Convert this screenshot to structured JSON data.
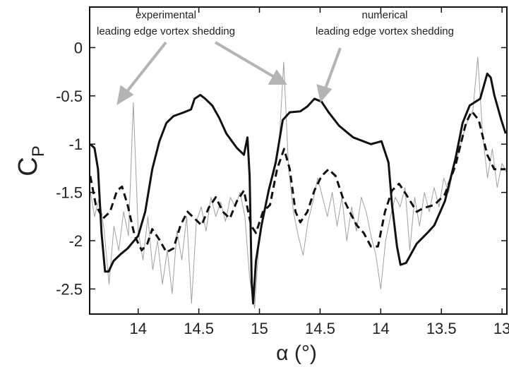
{
  "chart_data": {
    "type": "line",
    "xlabel": "α (°)",
    "ylabel": "C",
    "ylabel_subscript": "P",
    "annotations": [
      {
        "lines": [
          "experimental",
          "leading edge vortex shedding"
        ]
      },
      {
        "lines": [
          "numerical",
          "leading edge vortex shedding"
        ]
      }
    ],
    "xlim": [
      13.6,
      17.04
    ],
    "ylim": [
      -2.76,
      0.42
    ],
    "xticks": [
      14,
      14.5,
      15,
      {
        "value": 15.5,
        "label": "14.5"
      },
      {
        "value": 16,
        "label": "14"
      },
      {
        "value": 16.5,
        "label": "13.5"
      },
      {
        "value": 17,
        "label": "13"
      }
    ],
    "yticks": [
      -2.5,
      -2,
      -1.5,
      -1,
      -0.5,
      0
    ],
    "grid": false,
    "series": [
      {
        "color": "#a0a0a0",
        "style": "solid",
        "width": 1,
        "x": [
          13.6,
          13.64,
          13.68,
          13.72,
          13.76,
          13.8,
          13.84,
          13.88,
          13.92,
          13.96,
          14,
          14.04,
          14.08,
          14.12,
          14.16,
          14.2,
          14.24,
          14.28,
          14.32,
          14.36,
          14.4,
          14.44,
          14.48,
          14.52,
          14.56,
          14.6,
          14.64,
          14.68,
          14.72,
          14.76,
          14.8,
          14.84,
          14.88,
          14.92,
          14.96,
          15,
          15.04,
          15.08,
          15.12,
          15.16,
          15.2,
          15.24,
          15.28,
          15.32,
          15.36,
          15.4,
          15.44,
          15.48,
          15.52,
          15.56,
          15.6,
          15.64,
          15.68,
          15.72,
          15.76,
          15.8,
          15.84,
          15.88,
          15.92,
          15.96,
          16,
          16.04,
          16.08,
          16.12,
          16.16,
          16.2,
          16.24,
          16.28,
          16.32,
          16.36,
          16.4,
          16.44,
          16.48,
          16.52,
          16.56,
          16.6,
          16.64,
          16.68,
          16.72,
          16.76,
          16.8,
          16.84,
          16.88,
          16.92,
          16.96,
          17,
          17.04
        ],
        "values": [
          -1.45,
          -1.75,
          -1.55,
          -1.9,
          -2.45,
          -1.85,
          -2.1,
          -1.7,
          -1.95,
          -0.57,
          -1.9,
          -2.2,
          -1.75,
          -2.3,
          -2.0,
          -2.45,
          -2.1,
          -2.55,
          -1.9,
          -2.2,
          -1.75,
          -2.65,
          -1.8,
          -1.65,
          -1.9,
          -1.55,
          -1.75,
          -1.6,
          -1.8,
          -1.55,
          -1.65,
          -1.5,
          -1.75,
          -2.4,
          -2.7,
          -1.95,
          -1.7,
          -1.45,
          -1.3,
          -1.05,
          -0.15,
          -1.25,
          -1.7,
          -1.95,
          -2.15,
          -1.8,
          -1.6,
          -1.35,
          -1.55,
          -1.75,
          -1.5,
          -1.85,
          -1.55,
          -2.0,
          -1.65,
          -1.9,
          -1.55,
          -1.7,
          -1.95,
          -2.15,
          -2.5,
          -2.0,
          -1.75,
          -1.55,
          -1.65,
          -1.45,
          -2.1,
          -1.55,
          -1.85,
          -1.5,
          -1.7,
          -1.45,
          -1.65,
          -1.35,
          -1.5,
          -1.25,
          -1.1,
          -0.9,
          -0.75,
          -0.65,
          -0.1,
          -0.9,
          -1.35,
          -1.05,
          -1.45,
          -1.2,
          -1.3
        ]
      },
      {
        "color": "#111111",
        "style": "solid",
        "width": 3,
        "x": [
          13.605,
          13.64,
          13.669,
          13.698,
          13.727,
          13.756,
          13.797,
          13.855,
          13.913,
          14.0,
          14.058,
          14.116,
          14.175,
          14.233,
          14.291,
          14.378,
          14.436,
          14.465,
          14.512,
          14.553,
          14.611,
          14.669,
          14.727,
          14.814,
          14.872,
          14.901,
          14.919,
          14.936,
          14.948,
          14.971,
          15.017,
          15.076,
          15.134,
          15.192,
          15.25,
          15.337,
          15.395,
          15.453,
          15.512,
          15.57,
          15.657,
          15.773,
          15.919,
          16.006,
          16.064,
          16.093,
          16.134,
          16.163,
          16.209,
          16.297,
          16.384,
          16.442,
          16.529,
          16.616,
          16.675,
          16.733,
          16.82,
          16.878,
          16.907,
          16.936,
          16.994,
          17.03
        ],
        "values": [
          -1.0,
          -1.04,
          -1.26,
          -1.92,
          -2.32,
          -2.32,
          -2.21,
          -2.14,
          -2.08,
          -1.95,
          -1.7,
          -1.26,
          -0.97,
          -0.78,
          -0.71,
          -0.67,
          -0.64,
          -0.53,
          -0.49,
          -0.53,
          -0.6,
          -0.73,
          -0.89,
          -1.04,
          -1.11,
          -0.93,
          -1.33,
          -2.43,
          -2.65,
          -2.21,
          -1.84,
          -1.48,
          -1.19,
          -0.75,
          -0.67,
          -0.66,
          -0.61,
          -0.53,
          -0.56,
          -0.67,
          -0.81,
          -0.93,
          -1.0,
          -0.97,
          -1.19,
          -1.63,
          -2.06,
          -2.25,
          -2.23,
          -2.03,
          -1.92,
          -1.84,
          -1.59,
          -1.15,
          -0.78,
          -0.6,
          -0.53,
          -0.27,
          -0.31,
          -0.49,
          -0.75,
          -0.89
        ]
      },
      {
        "color": "#111111",
        "style": "dashed",
        "width": 3,
        "x": [
          13.605,
          13.651,
          13.71,
          13.768,
          13.826,
          13.867,
          13.913,
          13.971,
          14.029,
          14.076,
          14.116,
          14.175,
          14.233,
          14.291,
          14.349,
          14.407,
          14.465,
          14.523,
          14.581,
          14.64,
          14.698,
          14.756,
          14.814,
          14.872,
          14.93,
          14.971,
          15.029,
          15.087,
          15.145,
          15.203,
          15.25,
          15.297,
          15.337,
          15.395,
          15.453,
          15.512,
          15.57,
          15.628,
          15.686,
          15.744,
          15.802,
          15.86,
          15.919,
          15.977,
          16.035,
          16.093,
          16.151,
          16.209,
          16.297,
          16.355,
          16.442,
          16.529,
          16.616,
          16.703,
          16.75,
          16.808,
          16.878,
          16.936,
          16.994,
          17.03
        ],
        "values": [
          -1.33,
          -1.63,
          -1.77,
          -1.7,
          -1.48,
          -1.44,
          -1.63,
          -1.95,
          -2.1,
          -2.03,
          -1.88,
          -1.99,
          -2.12,
          -2.08,
          -1.84,
          -1.7,
          -1.77,
          -1.84,
          -1.66,
          -1.55,
          -1.7,
          -1.77,
          -1.59,
          -1.48,
          -1.84,
          -1.92,
          -1.7,
          -1.63,
          -1.26,
          -1.05,
          -1.26,
          -1.7,
          -1.81,
          -1.7,
          -1.48,
          -1.33,
          -1.26,
          -1.33,
          -1.55,
          -1.7,
          -1.84,
          -1.92,
          -2.06,
          -2.06,
          -1.7,
          -1.48,
          -1.41,
          -1.52,
          -1.7,
          -1.66,
          -1.63,
          -1.52,
          -1.22,
          -0.78,
          -0.66,
          -0.75,
          -1.11,
          -1.26,
          -1.26,
          -1.26
        ]
      }
    ]
  }
}
